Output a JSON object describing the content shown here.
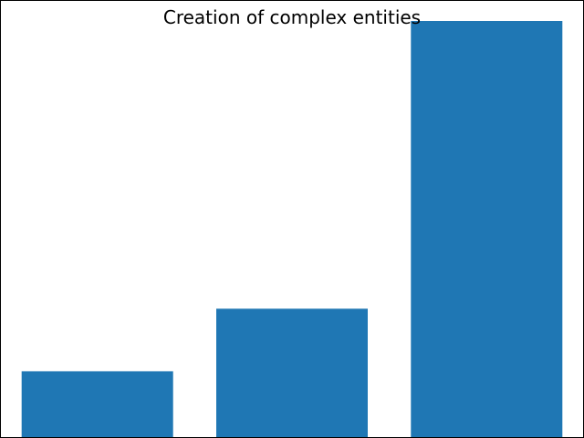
{
  "chart_data": {
    "type": "bar",
    "title": "Creation of complex entities",
    "categories": [
      "",
      "",
      ""
    ],
    "values": [
      16,
      31,
      100
    ],
    "ylim": [
      0,
      100
    ],
    "color": "#1f77b4",
    "axes_visible": false,
    "grid": false
  }
}
